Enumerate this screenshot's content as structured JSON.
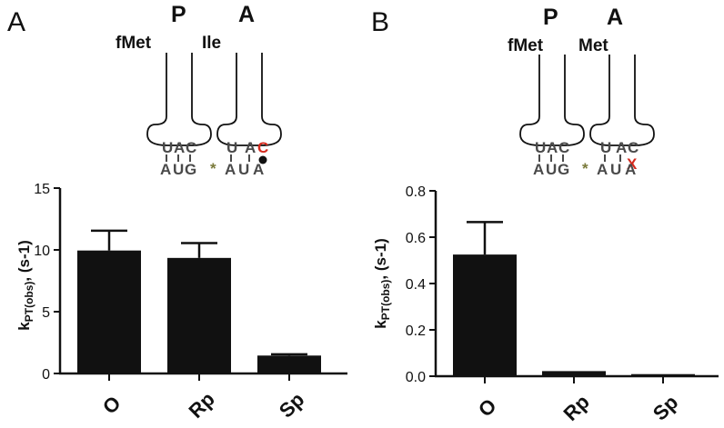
{
  "panels": [
    {
      "letter": "A",
      "diagram": {
        "sites": [
          "P",
          "A"
        ],
        "trna_p": "fMet",
        "trna_a": "Ile",
        "anticodon_p": [
          "U",
          "A",
          "C"
        ],
        "anticodon_a": [
          "U",
          "A",
          "C"
        ],
        "codon_p": [
          "A",
          "U",
          "G"
        ],
        "codon_a": [
          "A",
          "U",
          "A"
        ],
        "separator": "*",
        "highlight_color": "#d42a1e",
        "mismatch_mark": "dot"
      }
    },
    {
      "letter": "B",
      "diagram": {
        "sites": [
          "P",
          "A"
        ],
        "trna_p": "fMet",
        "trna_a": "Met",
        "anticodon_p": [
          "U",
          "A",
          "C"
        ],
        "anticodon_a": [
          "U",
          "A",
          "C"
        ],
        "codon_p": [
          "A",
          "U",
          "G"
        ],
        "codon_a": [
          "A",
          "U",
          "A"
        ],
        "separator": "*",
        "highlight_color": "#d42a1e",
        "mismatch_mark": "x",
        "mismatch_symbol": "X"
      }
    }
  ],
  "chart_data": [
    {
      "type": "bar",
      "categories": [
        "O",
        "Rp",
        "Sp"
      ],
      "values": [
        9.95,
        9.35,
        1.45
      ],
      "errors": [
        1.6,
        1.2,
        0.1
      ],
      "ylabel_main": "k",
      "ylabel_sub": "PT(obs)",
      "ylabel_rest": ", (s-1)",
      "ylim": [
        0,
        15
      ],
      "yticks": [
        0,
        5,
        10,
        15
      ],
      "ytick_labels": [
        "0",
        "5",
        "10",
        "15"
      ],
      "bar_color": "#111111"
    },
    {
      "type": "bar",
      "categories": [
        "O",
        "Rp",
        "Sp"
      ],
      "values": [
        0.525,
        0.022,
        0.009
      ],
      "errors": [
        0.14,
        0.0,
        0.0
      ],
      "ylabel_main": "k",
      "ylabel_sub": "PT(obs)",
      "ylabel_rest": ", (s-1)",
      "ylim": [
        0,
        0.8
      ],
      "yticks": [
        0,
        0.2,
        0.4,
        0.6,
        0.8
      ],
      "ytick_labels": [
        "0.0",
        "0.2",
        "0.4",
        "0.6",
        "0.8"
      ],
      "bar_color": "#111111"
    }
  ]
}
